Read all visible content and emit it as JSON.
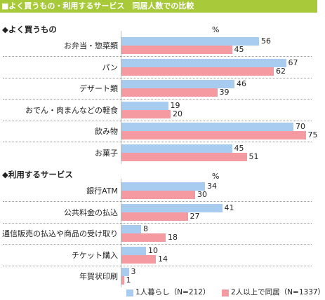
{
  "title": "■よく買うもの・利用するサービス　同居人数での比較",
  "chart_data": [
    {
      "type": "bar",
      "orientation": "horizontal",
      "title": "◆よく買うもの",
      "unit": "%",
      "categories": [
        "お弁当・惣菜類",
        "パン",
        "デザート類",
        "おでん・肉まんなどの軽食",
        "飲み物",
        "お菓子"
      ],
      "series": [
        {
          "name": "1人暮らし（N=212）",
          "values": [
            56,
            67,
            46,
            19,
            70,
            45
          ]
        },
        {
          "name": "2人以上で同居（N=1337）",
          "values": [
            45,
            62,
            39,
            20,
            75,
            51
          ]
        }
      ]
    },
    {
      "type": "bar",
      "orientation": "horizontal",
      "title": "◆利用するサービス",
      "unit": "%",
      "categories": [
        "銀行ATM",
        "公共料金の払込",
        "通信販売の払込や商品の受け取り",
        "チケット購入",
        "年賀状印刷"
      ],
      "series": [
        {
          "name": "1人暮らし（N=212）",
          "values": [
            34,
            41,
            8,
            10,
            3
          ]
        },
        {
          "name": "2人以上で同居（N=1337）",
          "values": [
            30,
            27,
            18,
            14,
            1
          ]
        }
      ]
    }
  ],
  "legend": [
    {
      "label": "1人暮らし（N=212）",
      "color": "#a8ccf0"
    },
    {
      "label": "2人以上で同居（N=1337）",
      "color": "#f49aa0"
    }
  ],
  "colors": {
    "series1": "#a8ccf0",
    "series2": "#f49aa0",
    "title_bar": "#a8c93a"
  }
}
